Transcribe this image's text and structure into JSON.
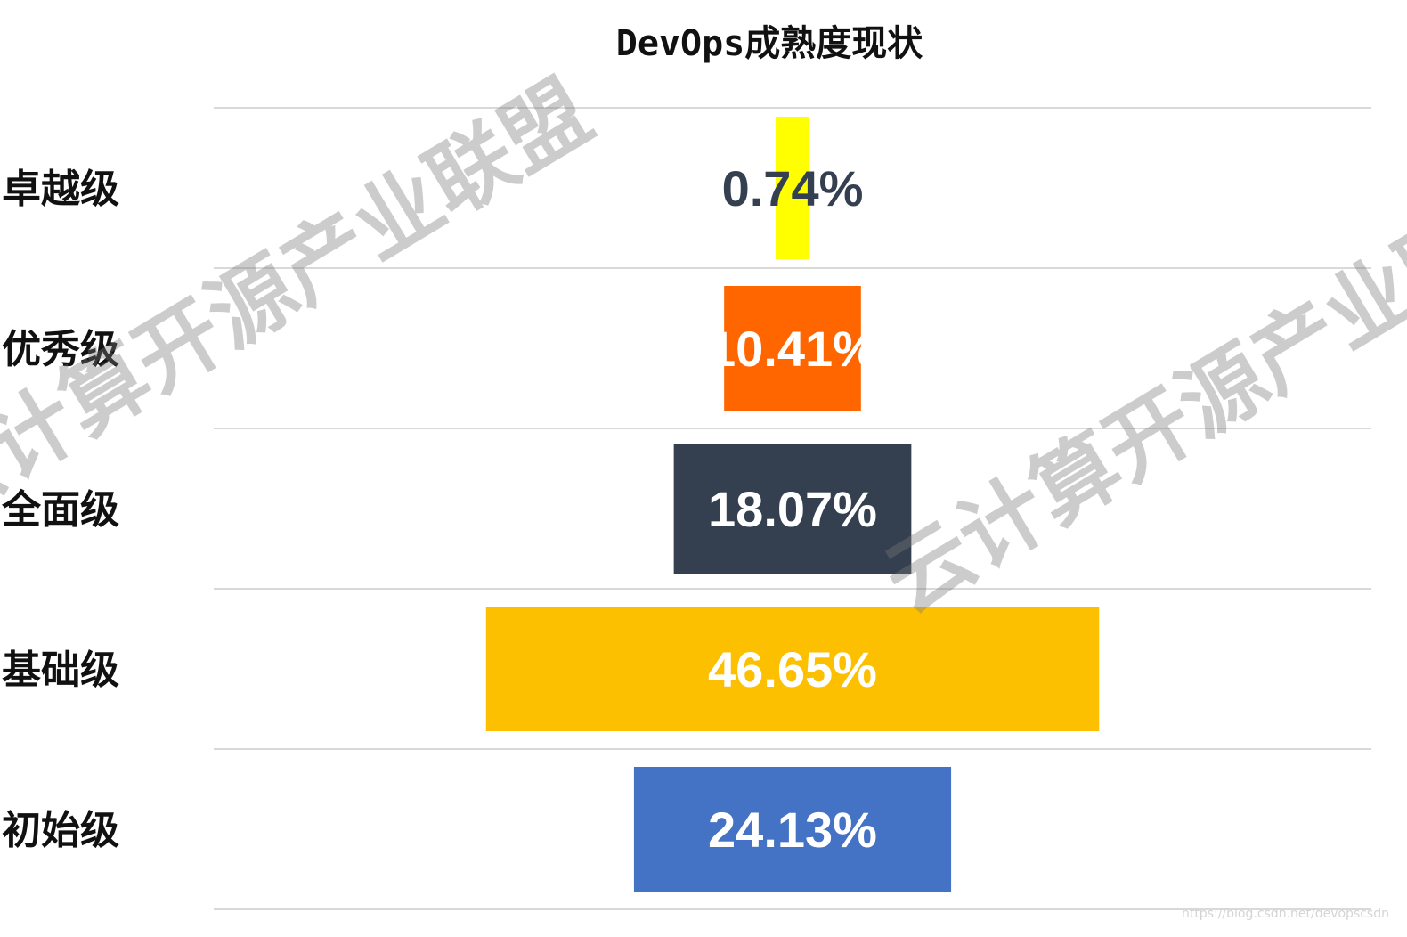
{
  "chart_data": {
    "type": "bar",
    "title": "DevOps成熟度现状",
    "categories": [
      "卓越级",
      "优秀级",
      "全面级",
      "基础级",
      "初始级"
    ],
    "values": [
      0.74,
      10.41,
      18.07,
      46.65,
      24.13
    ],
    "value_labels": [
      "0.74%",
      "10.41%",
      "18.07%",
      "46.65%",
      "24.13%"
    ],
    "colors": [
      "#ffff00",
      "#ff6600",
      "#344050",
      "#fcc000",
      "#4472c4"
    ],
    "label_colors": [
      "#344050",
      "#ffffff",
      "#ffffff",
      "#ffffff",
      "#ffffff"
    ],
    "orientation": "horizontal-centered",
    "grid": true,
    "legend": "none"
  },
  "watermarks": [
    "云计算开源产业联盟",
    "云计算开源产业联盟"
  ],
  "source_url": "https://blog.csdn.net/devopscsdn"
}
